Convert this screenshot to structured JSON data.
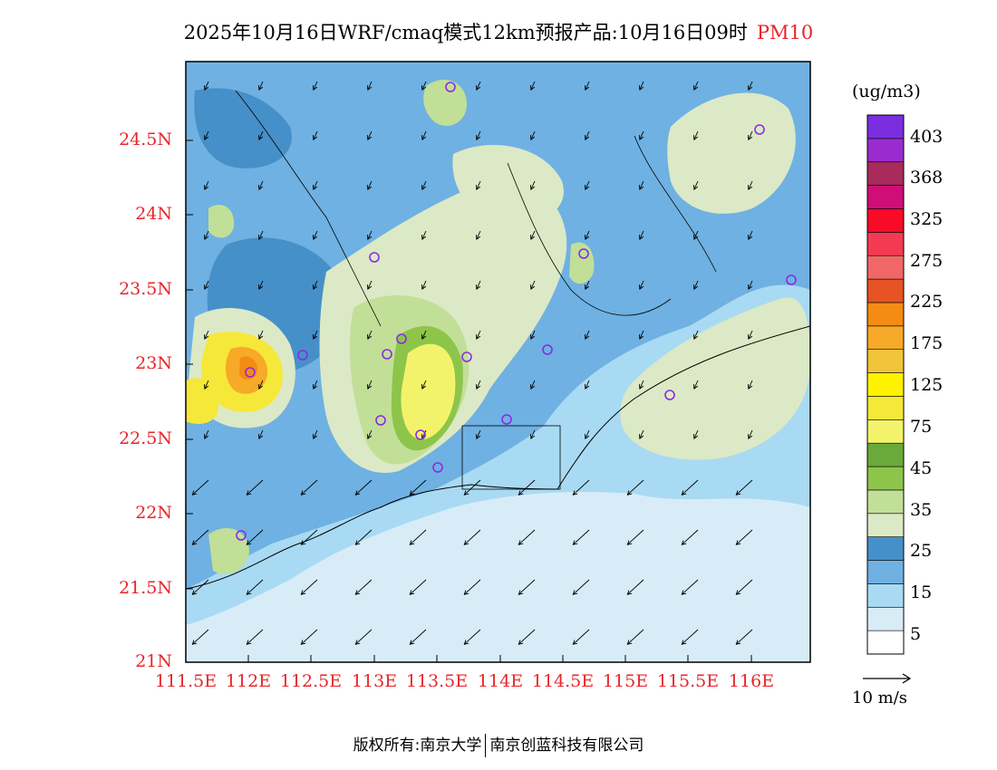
{
  "title": {
    "main": "2025年10月16日WRF/cmaq模式12km预报产品:10月16日09时",
    "variable": "PM10"
  },
  "axes": {
    "lat_labels": [
      "24.5N",
      "24N",
      "23.5N",
      "23N",
      "22.5N",
      "22N",
      "21.5N",
      "21N"
    ],
    "lon_labels": [
      "111.5E",
      "112E",
      "112.5E",
      "113E",
      "113.5E",
      "114E",
      "114.5E",
      "115E",
      "115.5E",
      "116E"
    ]
  },
  "colorbar": {
    "unit": "(ug/m3)",
    "levels": [
      "403",
      "368",
      "325",
      "275",
      "225",
      "175",
      "125",
      "75",
      "45",
      "35",
      "25",
      "15",
      "5"
    ],
    "colors": [
      "#ffffff",
      "#d8ecf8",
      "#a9daf3",
      "#6fb1e2",
      "#4690c9",
      "#dce9c6",
      "#c2df97",
      "#8dc54b",
      "#6aaa3a",
      "#f3f36b",
      "#f6e838",
      "#fff200",
      "#f2c43a",
      "#f7a928",
      "#f48b14",
      "#e85325",
      "#f16767",
      "#f23b53",
      "#f70b26",
      "#cf0e77",
      "#a82b5b",
      "#9a2ccf",
      "#7a2ee0"
    ]
  },
  "wind_legend": {
    "label": "10 m/s"
  },
  "footer": {
    "left": "版权所有:南京大学",
    "right": "南京创蓝科技有限公司"
  }
}
